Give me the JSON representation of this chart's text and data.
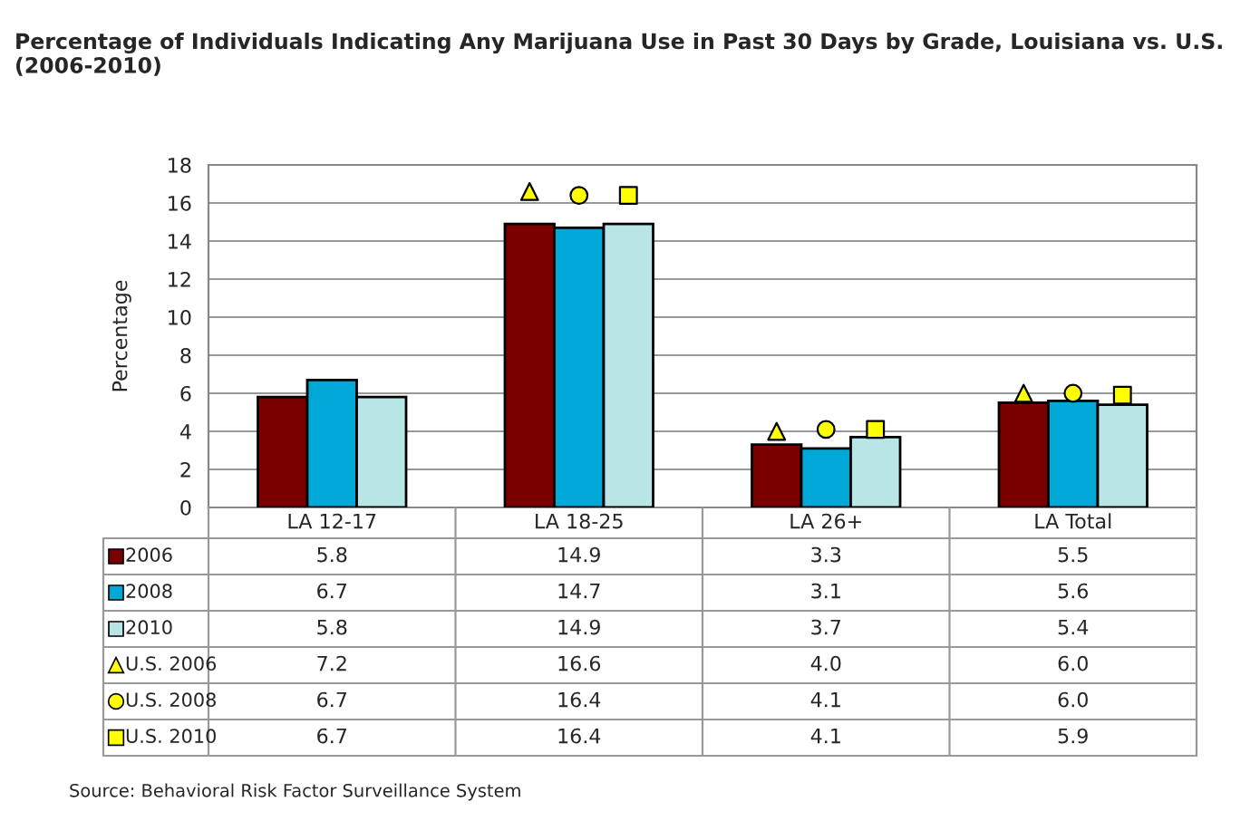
{
  "chart_data": {
    "type": "bar",
    "title": "Percentage of Individuals Indicating Any Marijuana Use in Past 30 Days by Grade, Louisiana vs. U.S. (2006-2010)",
    "ylabel": "Percentage",
    "categories": [
      "LA 12-17",
      "LA 18-25",
      "LA 26+",
      "LA Total"
    ],
    "series": [
      {
        "name": "2006",
        "color": "#7a0000",
        "values": [
          5.8,
          14.9,
          3.3,
          5.5
        ],
        "value_labels": [
          "5.8",
          "14.9",
          "3.3",
          "5.5"
        ]
      },
      {
        "name": "2008",
        "color": "#00a8d8",
        "values": [
          6.7,
          14.7,
          3.1,
          5.6
        ],
        "value_labels": [
          "6.7",
          "14.7",
          "3.1",
          "5.6"
        ]
      },
      {
        "name": "2010",
        "color": "#b8e6e6",
        "values": [
          5.8,
          14.9,
          3.7,
          5.4
        ],
        "value_labels": [
          "5.8",
          "14.9",
          "3.7",
          "5.4"
        ]
      },
      {
        "name": "U.S. 2006",
        "type": "scatter",
        "marker": "triangle",
        "color": "#ffff00",
        "values": [
          null,
          16.6,
          4.0,
          6.0
        ],
        "value_labels": [
          "7.2",
          "16.6",
          "4.0",
          "6.0"
        ]
      },
      {
        "name": "U.S. 2008",
        "type": "scatter",
        "marker": "circle",
        "color": "#ffff00",
        "values": [
          null,
          16.4,
          4.1,
          6.0
        ],
        "value_labels": [
          "6.7",
          "16.4",
          "4.1",
          "6.0"
        ]
      },
      {
        "name": "U.S. 2010",
        "type": "scatter",
        "marker": "square",
        "color": "#ffff00",
        "values": [
          null,
          16.4,
          4.1,
          5.9
        ],
        "value_labels": [
          "6.7",
          "16.4",
          "4.1",
          "5.9"
        ]
      }
    ],
    "legend": "bottom",
    "ylim": [
      0,
      18
    ],
    "yticks": [
      0,
      2,
      4,
      6,
      8,
      10,
      12,
      14,
      16,
      18
    ],
    "grid": "y",
    "annotations": [
      "Source: Behavioral Risk Factor Surveillance System"
    ]
  }
}
